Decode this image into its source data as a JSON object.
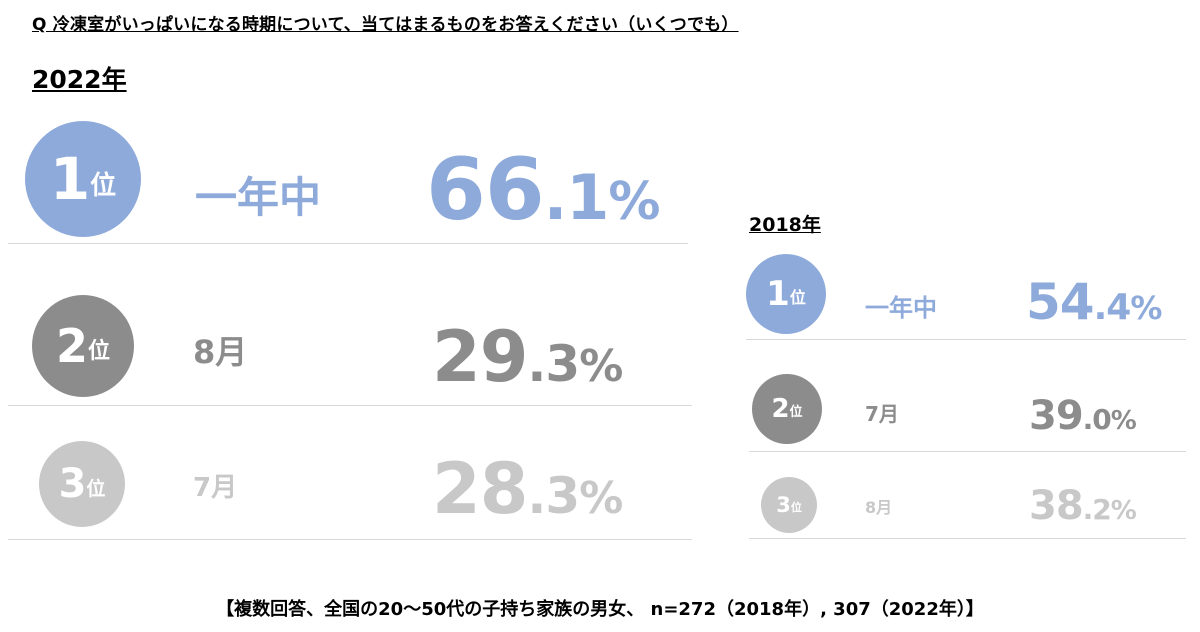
{
  "question": "Q 冷凍室がいっぱいになる時期について、当てはまるものをお答えください（いくつでも）",
  "colors": {
    "rank1": "#8eaadb",
    "rank2": "#8c8c8c",
    "rank3": "#c8c8c8",
    "rank1_text": "#8eaadb",
    "rank2_text": "#8c8c8c",
    "rank3_text": "#c8c8c8"
  },
  "rank_suffix": "位",
  "chart_data": [
    {
      "type": "table",
      "title": "2022年",
      "rows": [
        {
          "rank": "1",
          "item": "一年中",
          "value_int": "66",
          "value_dec": ".1",
          "unit": "%",
          "value": 66.1
        },
        {
          "rank": "2",
          "item": "8月",
          "value_int": "29",
          "value_dec": ".3",
          "unit": "%",
          "value": 29.3
        },
        {
          "rank": "3",
          "item": "7月",
          "value_int": "28",
          "value_dec": ".3",
          "unit": "%",
          "value": 28.3
        }
      ]
    },
    {
      "type": "table",
      "title": "2018年",
      "rows": [
        {
          "rank": "1",
          "item": "一年中",
          "value_int": "54",
          "value_dec": ".4",
          "unit": "%",
          "value": 54.4
        },
        {
          "rank": "2",
          "item": "7月",
          "value_int": "39",
          "value_dec": ".0",
          "unit": "%",
          "value": 39.0
        },
        {
          "rank": "3",
          "item": "8月",
          "value_int": "38",
          "value_dec": ".2",
          "unit": "%",
          "value": 38.2
        }
      ]
    }
  ],
  "footer": "【複数回答、全国の20～50代の子持ち家族の男女、 n=272（2018年）, 307（2022年）】"
}
